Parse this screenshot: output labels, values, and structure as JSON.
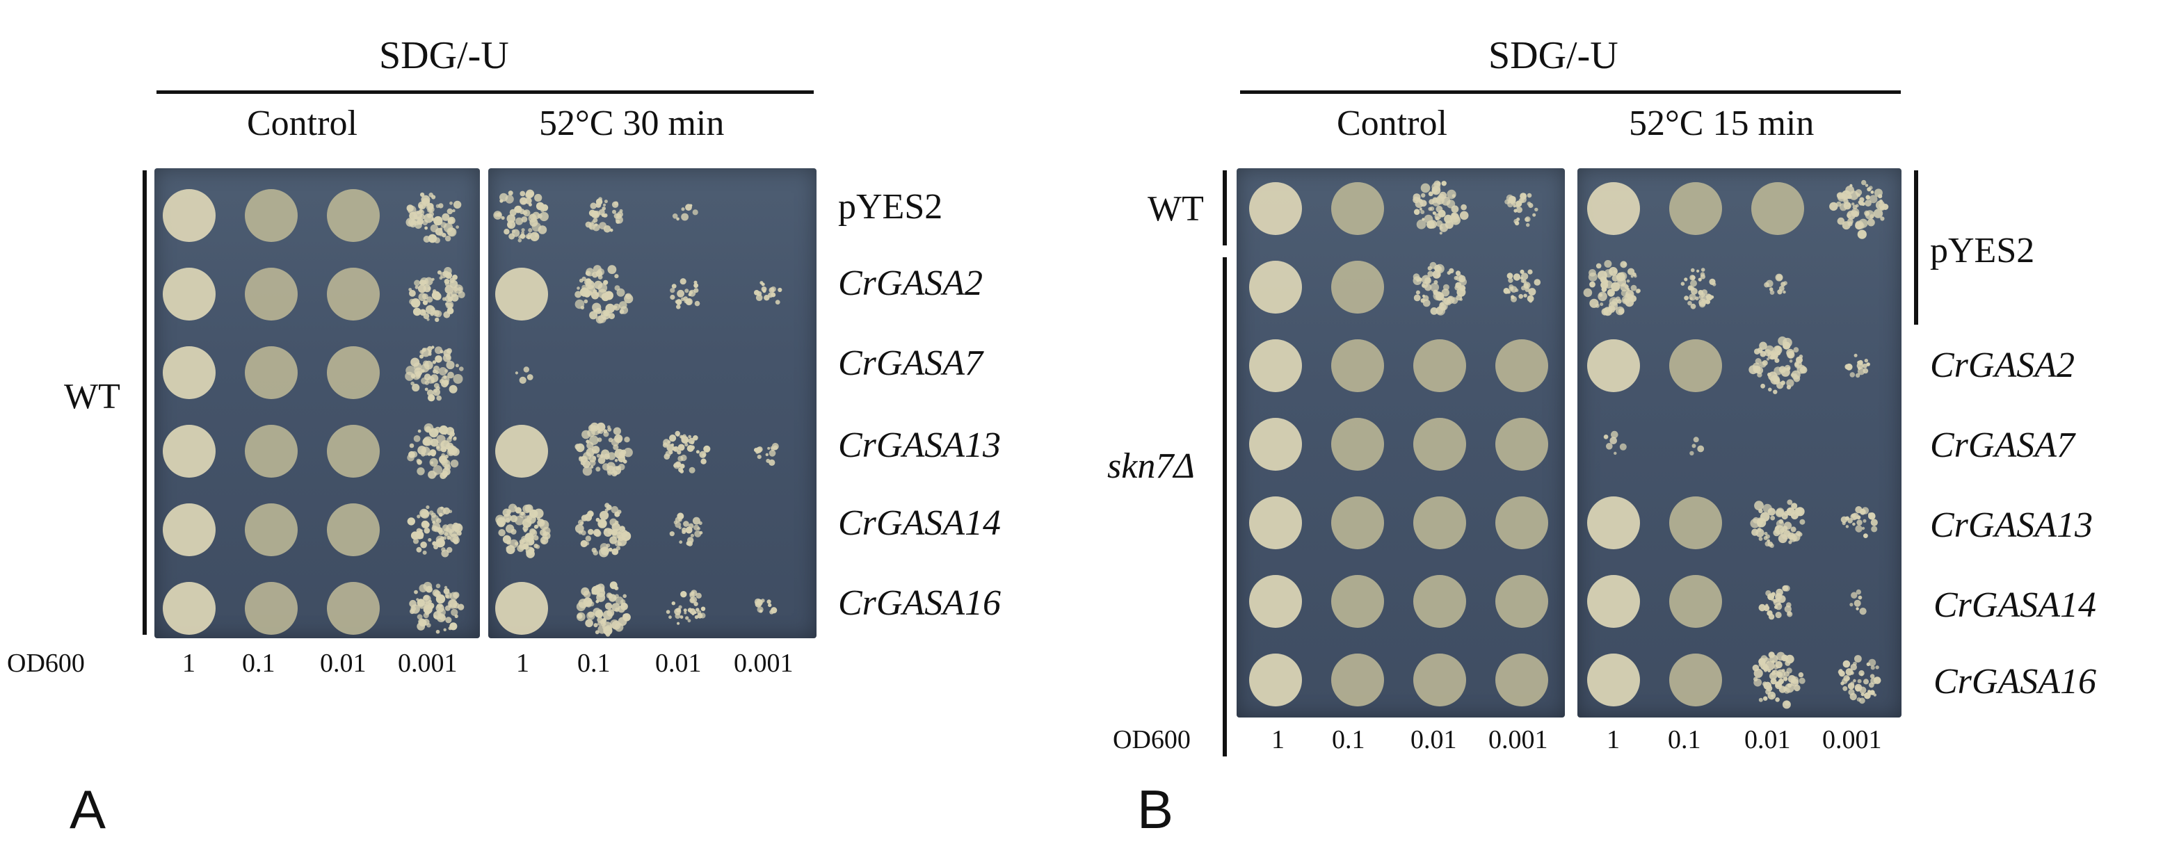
{
  "panels": [
    {
      "letter": "A",
      "header": "SDG/-U",
      "conditions": [
        "Control",
        "52°C 30 min"
      ],
      "strain_label": "WT",
      "rows": [
        "pYES2",
        "CrGASA2",
        "CrGASA7",
        "CrGASA13",
        "CrGASA14",
        "CrGASA16"
      ],
      "od_label": "OD600",
      "dilutions": [
        "1",
        "0.1",
        "0.01",
        "0.001"
      ]
    },
    {
      "letter": "B",
      "header": "SDG/-U",
      "conditions": [
        "Control",
        "52°C 15 min"
      ],
      "strain_labels": [
        "WT",
        "skn7Δ"
      ],
      "vector_label": "pYES2",
      "rows": [
        "CrGASA2",
        "CrGASA7",
        "CrGASA13",
        "CrGASA14",
        "CrGASA16"
      ],
      "od_label": "OD600",
      "dilutions": [
        "1",
        "0.1",
        "0.01",
        "0.001"
      ]
    }
  ],
  "growth": {
    "A_control": [
      [
        1,
        1,
        1,
        0.9
      ],
      [
        1,
        1,
        1,
        0.95
      ],
      [
        1,
        1,
        1,
        0.9
      ],
      [
        1,
        1,
        1,
        0.9
      ],
      [
        1,
        1,
        1,
        0.85
      ],
      [
        1,
        1,
        1,
        0.85
      ]
    ],
    "A_heat": [
      [
        0.8,
        0.5,
        0.1,
        0
      ],
      [
        1,
        0.85,
        0.3,
        0.2
      ],
      [
        0.05,
        0,
        0,
        0
      ],
      [
        1,
        0.95,
        0.6,
        0.2
      ],
      [
        0.95,
        0.75,
        0.35,
        0
      ],
      [
        1,
        0.9,
        0.45,
        0.15
      ]
    ],
    "B_control": [
      [
        1,
        1,
        0.8,
        0.4
      ],
      [
        1,
        1,
        0.8,
        0.4
      ],
      [
        1,
        1,
        1,
        1
      ],
      [
        1,
        1,
        1,
        1
      ],
      [
        1,
        1,
        1,
        1
      ],
      [
        1,
        1,
        1,
        1
      ],
      [
        1,
        1,
        1,
        1
      ]
    ],
    "B_heat": [
      [
        1,
        1,
        1,
        0.85
      ],
      [
        0.9,
        0.5,
        0.15,
        0
      ],
      [
        1,
        1,
        0.85,
        0.2
      ],
      [
        0.1,
        0.05,
        0,
        0
      ],
      [
        1,
        1,
        0.8,
        0.35
      ],
      [
        1,
        1,
        0.4,
        0.1
      ],
      [
        1,
        1,
        0.9,
        0.6
      ]
    ],
    "colors": {
      "plate": "#46556b",
      "colony": "#d9d3b4",
      "colony_dark": "#b9b595"
    }
  }
}
